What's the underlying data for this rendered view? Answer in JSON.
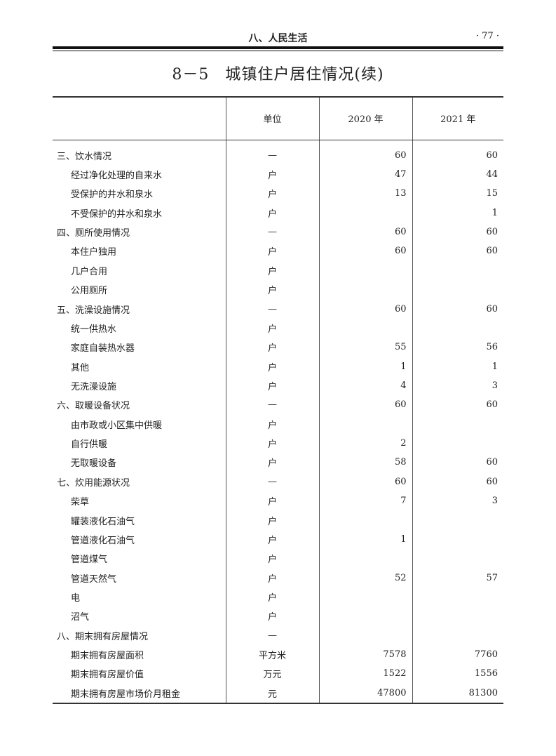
{
  "running_header": {
    "section": "八、人民生活",
    "page": "· 77 ·"
  },
  "title": "8－5　城镇住户居住情况(续)",
  "table": {
    "headers": [
      "",
      "单位",
      "2020 年",
      "2021 年"
    ],
    "rows": [
      {
        "label": "三、饮水情况",
        "indent": false,
        "unit": "—",
        "y2020": "60",
        "y2021": "60"
      },
      {
        "label": "经过净化处理的自来水",
        "indent": true,
        "unit": "户",
        "y2020": "47",
        "y2021": "44"
      },
      {
        "label": "受保护的井水和泉水",
        "indent": true,
        "unit": "户",
        "y2020": "13",
        "y2021": "15"
      },
      {
        "label": "不受保护的井水和泉水",
        "indent": true,
        "unit": "户",
        "y2020": "",
        "y2021": "1"
      },
      {
        "label": "四、厕所使用情况",
        "indent": false,
        "unit": "—",
        "y2020": "60",
        "y2021": "60"
      },
      {
        "label": "本住户独用",
        "indent": true,
        "unit": "户",
        "y2020": "60",
        "y2021": "60"
      },
      {
        "label": "几户合用",
        "indent": true,
        "unit": "户",
        "y2020": "",
        "y2021": ""
      },
      {
        "label": "公用厕所",
        "indent": true,
        "unit": "户",
        "y2020": "",
        "y2021": ""
      },
      {
        "label": "五、洗澡设施情况",
        "indent": false,
        "unit": "—",
        "y2020": "60",
        "y2021": "60"
      },
      {
        "label": "统一供热水",
        "indent": true,
        "unit": "户",
        "y2020": "",
        "y2021": ""
      },
      {
        "label": "家庭自装热水器",
        "indent": true,
        "unit": "户",
        "y2020": "55",
        "y2021": "56"
      },
      {
        "label": "其他",
        "indent": true,
        "unit": "户",
        "y2020": "1",
        "y2021": "1"
      },
      {
        "label": "无洗澡设施",
        "indent": true,
        "unit": "户",
        "y2020": "4",
        "y2021": "3"
      },
      {
        "label": "六、取暖设备状况",
        "indent": false,
        "unit": "—",
        "y2020": "60",
        "y2021": "60"
      },
      {
        "label": "由市政或小区集中供暖",
        "indent": true,
        "unit": "户",
        "y2020": "",
        "y2021": ""
      },
      {
        "label": "自行供暖",
        "indent": true,
        "unit": "户",
        "y2020": "2",
        "y2021": ""
      },
      {
        "label": "无取暖设备",
        "indent": true,
        "unit": "户",
        "y2020": "58",
        "y2021": "60"
      },
      {
        "label": "七、炊用能源状况",
        "indent": false,
        "unit": "—",
        "y2020": "60",
        "y2021": "60"
      },
      {
        "label": "柴草",
        "indent": true,
        "unit": "户",
        "y2020": "7",
        "y2021": "3"
      },
      {
        "label": "罐装液化石油气",
        "indent": true,
        "unit": "户",
        "y2020": "",
        "y2021": ""
      },
      {
        "label": "管道液化石油气",
        "indent": true,
        "unit": "户",
        "y2020": "1",
        "y2021": ""
      },
      {
        "label": "管道煤气",
        "indent": true,
        "unit": "户",
        "y2020": "",
        "y2021": ""
      },
      {
        "label": "管道天然气",
        "indent": true,
        "unit": "户",
        "y2020": "52",
        "y2021": "57"
      },
      {
        "label": "电",
        "indent": true,
        "unit": "户",
        "y2020": "",
        "y2021": ""
      },
      {
        "label": "沼气",
        "indent": true,
        "unit": "户",
        "y2020": "",
        "y2021": ""
      },
      {
        "label": "八、期末拥有房屋情况",
        "indent": false,
        "unit": "—",
        "y2020": "",
        "y2021": ""
      },
      {
        "label": "期末拥有房屋面积",
        "indent": true,
        "unit": "平方米",
        "y2020": "7578",
        "y2021": "7760"
      },
      {
        "label": "期末拥有房屋价值",
        "indent": true,
        "unit": "万元",
        "y2020": "1522",
        "y2021": "1556"
      },
      {
        "label": "期末拥有房屋市场价月租金",
        "indent": true,
        "unit": "元",
        "y2020": "47800",
        "y2021": "81300"
      }
    ]
  }
}
